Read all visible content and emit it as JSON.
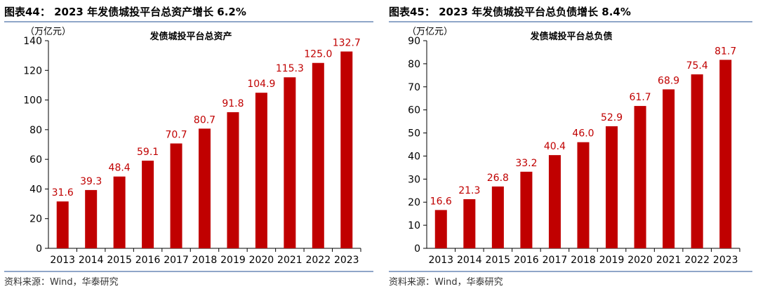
{
  "colors": {
    "bar": "#c00000",
    "label": "#c00000",
    "rule": "#8fa6c8"
  },
  "figures": [
    {
      "caption": "图表44： 2023 年发债城投平台总资产增长 6.2%",
      "source": "资料来源：Wind，华泰研究"
    },
    {
      "caption": "图表45： 2023 年发债城投平台总负债增长 8.4%",
      "source": "资料来源：Wind，华泰研究"
    }
  ],
  "chart_data": [
    {
      "type": "bar",
      "title": "发债城投平台总资产",
      "unit": "（万亿元）",
      "xlabel": "",
      "ylabel": "",
      "categories": [
        "2013",
        "2014",
        "2015",
        "2016",
        "2017",
        "2018",
        "2019",
        "2020",
        "2021",
        "2022",
        "2023"
      ],
      "values": [
        31.6,
        39.3,
        48.4,
        59.1,
        70.7,
        80.7,
        91.8,
        104.9,
        115.3,
        125.0,
        132.7
      ],
      "value_labels": [
        "31.6",
        "39.3",
        "48.4",
        "59.1",
        "70.7",
        "80.7",
        "91.8",
        "104.9",
        "115.3",
        "125.0",
        "132.7"
      ],
      "ylim": [
        0,
        140
      ],
      "yticks": [
        0,
        20,
        40,
        60,
        80,
        100,
        120,
        140
      ]
    },
    {
      "type": "bar",
      "title": "发债城投平台总负债",
      "unit": "（万亿元）",
      "xlabel": "",
      "ylabel": "",
      "categories": [
        "2013",
        "2014",
        "2015",
        "2016",
        "2017",
        "2018",
        "2019",
        "2020",
        "2021",
        "2022",
        "2023"
      ],
      "values": [
        16.6,
        21.3,
        26.8,
        33.2,
        40.4,
        46.0,
        52.9,
        61.7,
        68.9,
        75.4,
        81.7
      ],
      "value_labels": [
        "16.6",
        "21.3",
        "26.8",
        "33.2",
        "40.4",
        "46.0",
        "52.9",
        "61.7",
        "68.9",
        "75.4",
        "81.7"
      ],
      "ylim": [
        0,
        90
      ],
      "yticks": [
        0,
        10,
        20,
        30,
        40,
        50,
        60,
        70,
        80,
        90
      ]
    }
  ]
}
